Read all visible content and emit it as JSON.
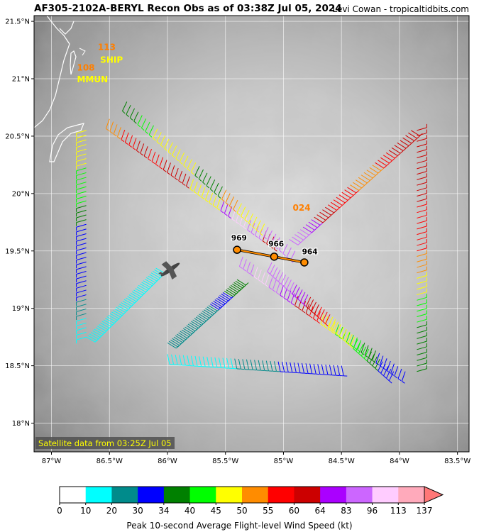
{
  "header": {
    "title": "AF305-2102A-BERYL Recon Obs as of 03:38Z Jul 05, 2024",
    "credit": "Levi Cowan - tropicaltidbits.com"
  },
  "map": {
    "lon_ticks": [
      "87°W",
      "86.5°W",
      "86°W",
      "85.5°W",
      "85°W",
      "84.5°W",
      "84°W",
      "83.5°W"
    ],
    "lat_ticks": [
      "21.5°N",
      "21°N",
      "20.5°N",
      "20°N",
      "19.5°N",
      "19°N",
      "18.5°N",
      "18°N"
    ],
    "lon_range": [
      -87.15,
      -83.4
    ],
    "lat_range": [
      17.75,
      21.55
    ],
    "satellite_note": "Satellite data from 03:25Z Jul 05",
    "annotations": [
      {
        "text": "113",
        "color": "#ff7f00",
        "lon": -86.6,
        "lat": 21.25
      },
      {
        "text": "SHIP",
        "color": "#ffff00",
        "lon": -86.58,
        "lat": 21.14
      },
      {
        "text": "108",
        "color": "#ff7f00",
        "lon": -86.78,
        "lat": 21.07
      },
      {
        "text": "MMUN",
        "color": "#ffff00",
        "lon": -86.78,
        "lat": 20.97
      },
      {
        "text": "024",
        "color": "#ff7f00",
        "lon": -84.92,
        "lat": 19.85
      }
    ],
    "pressure_labels": [
      {
        "text": "969",
        "lon": -85.45,
        "lat": 19.59
      },
      {
        "text": "966",
        "lon": -85.13,
        "lat": 19.54
      },
      {
        "text": "964",
        "lon": -84.84,
        "lat": 19.47
      }
    ],
    "center_fixes": [
      {
        "lon": -85.4,
        "lat": 19.51
      },
      {
        "lon": -85.08,
        "lat": 19.45
      },
      {
        "lon": -84.82,
        "lat": 19.4
      }
    ]
  },
  "colorbar": {
    "ticks": [
      "0",
      "10",
      "20",
      "30",
      "34",
      "40",
      "45",
      "50",
      "55",
      "60",
      "64",
      "83",
      "96",
      "113",
      "137"
    ],
    "colors": [
      "#ffffff",
      "#00ffff",
      "#008b8b",
      "#0000ff",
      "#008000",
      "#00ff00",
      "#ffff00",
      "#ff8c00",
      "#ff0000",
      "#cc0000",
      "#aa00ff",
      "#cc66ff",
      "#ffccff",
      "#ffaabb",
      "#ff7777"
    ],
    "label": "Peak 10-second Average Flight-level Wind Speed (kt)"
  }
}
